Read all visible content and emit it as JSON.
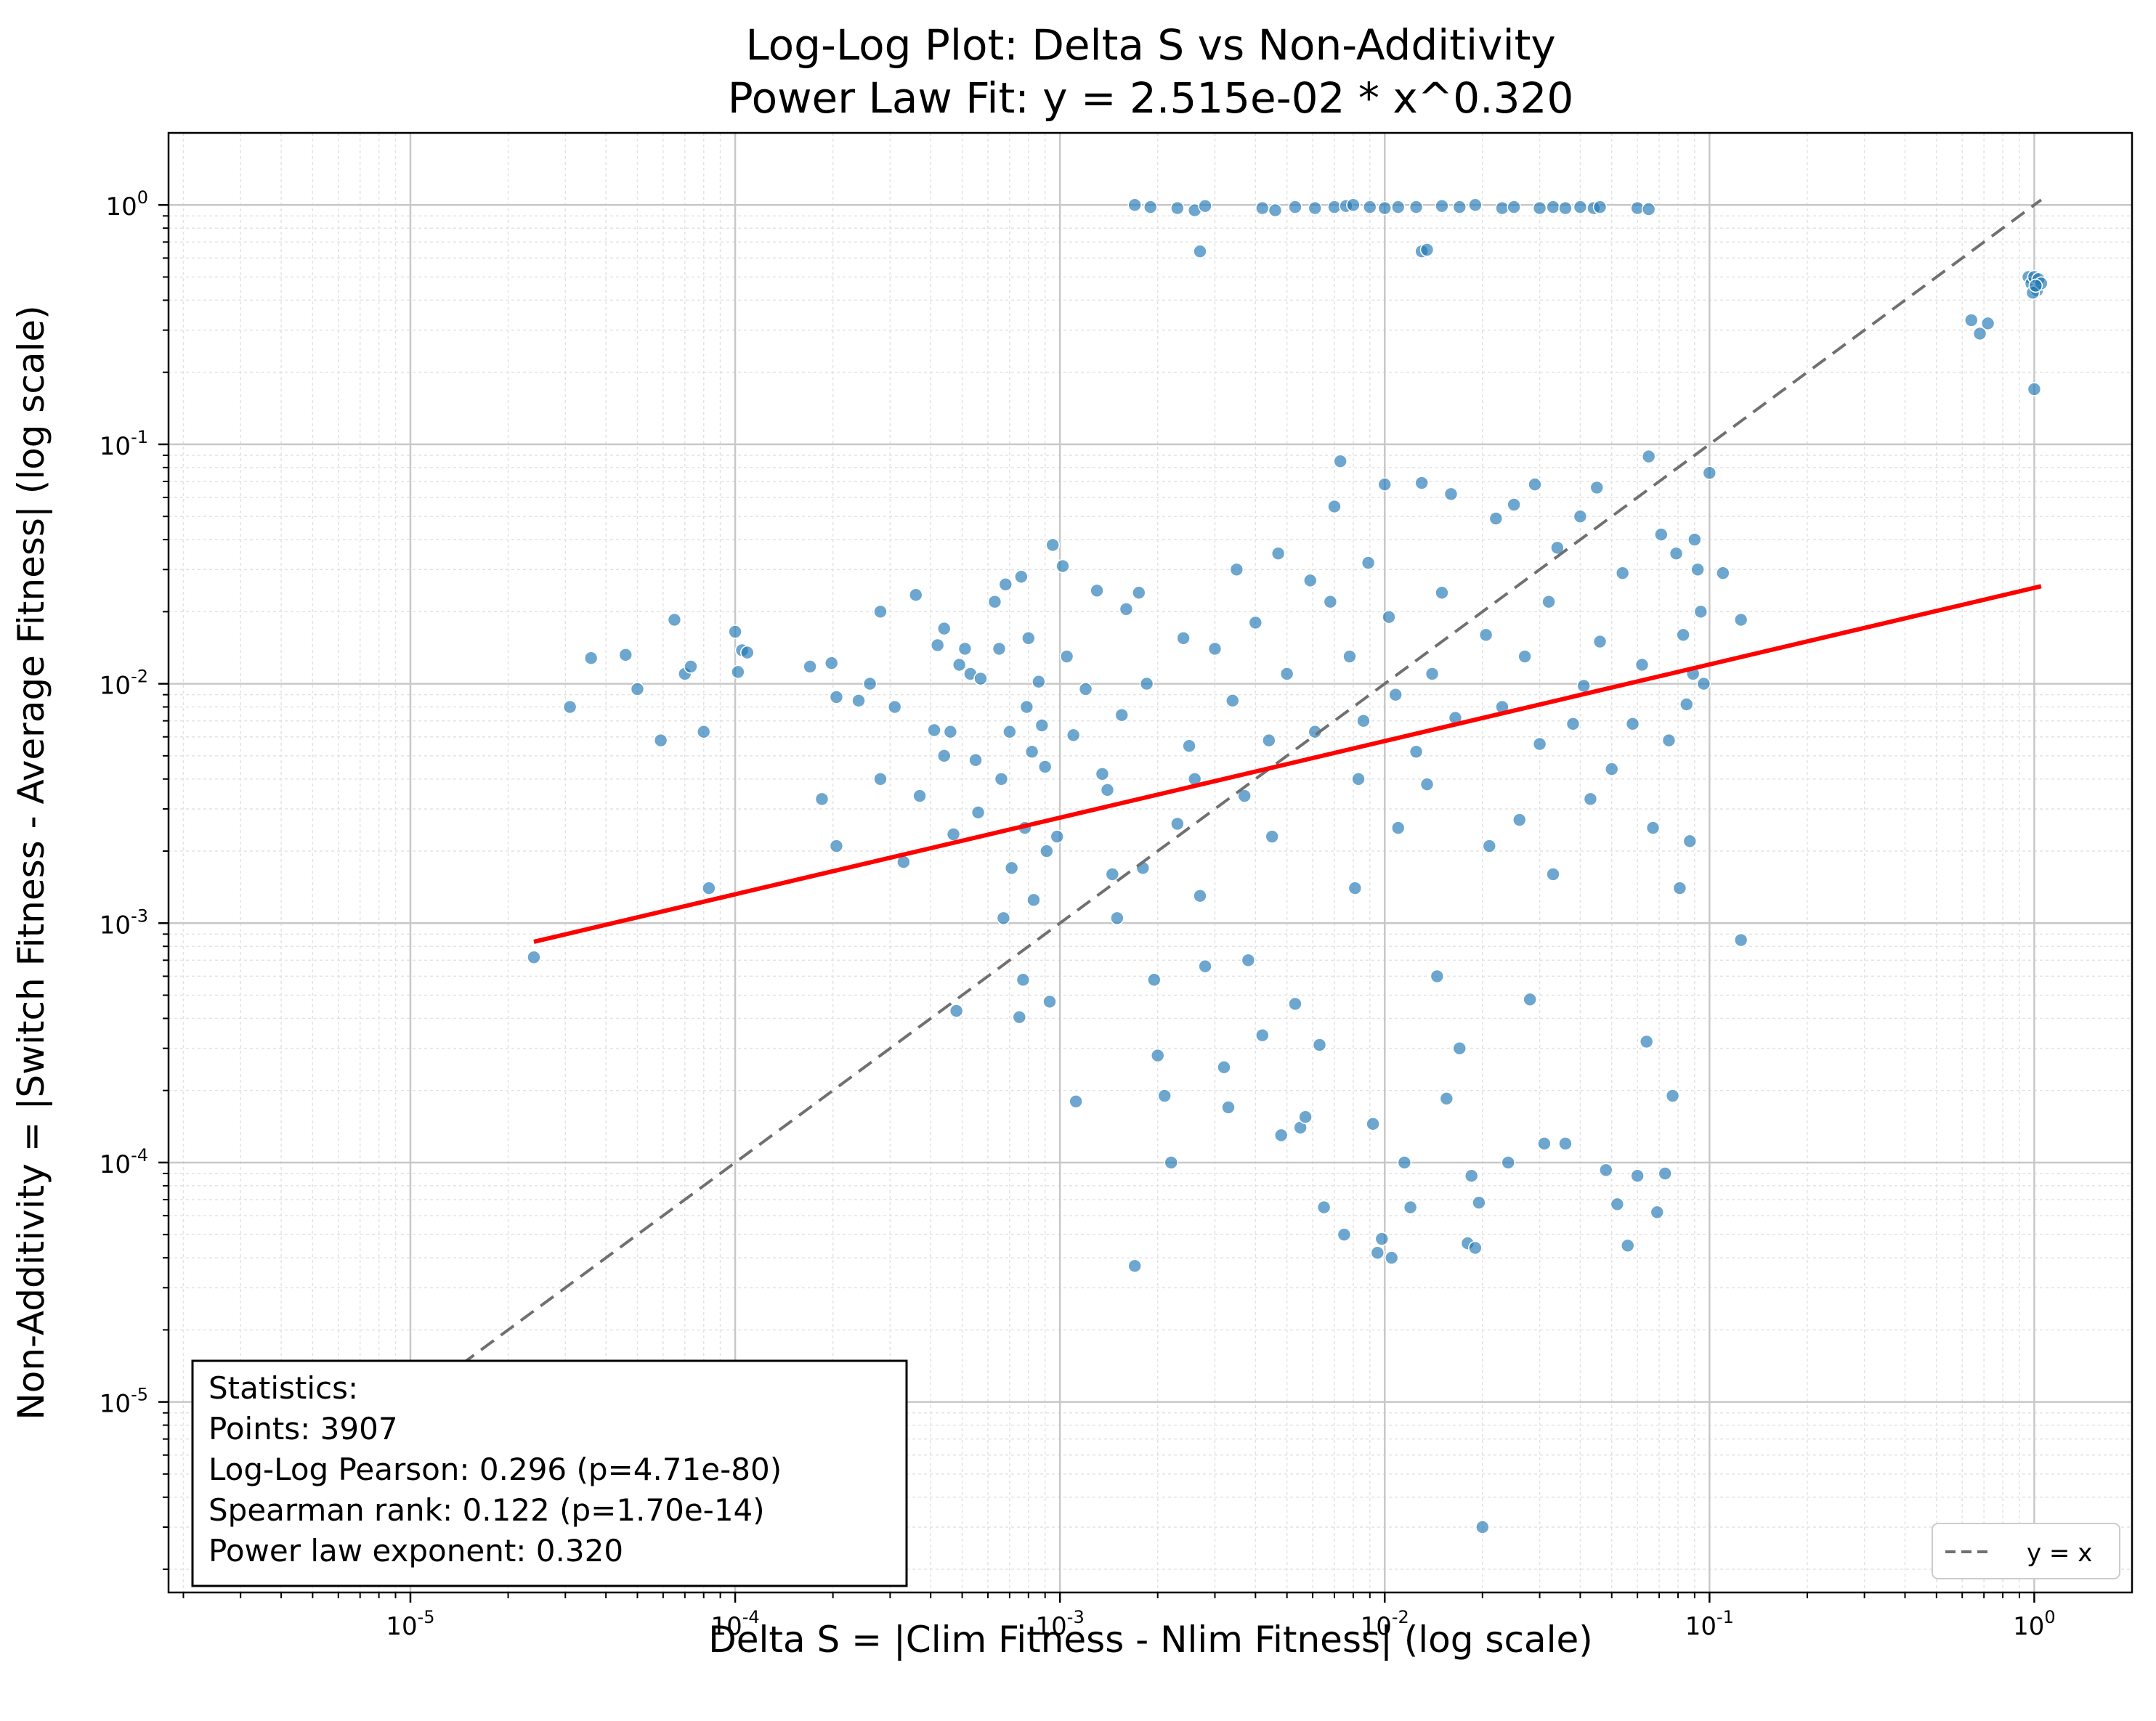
{
  "chart_data": {
    "type": "scatter",
    "title_line1": "Log-Log Plot: Delta S vs Non-Additivity",
    "title_line2": "Power Law Fit: y = 2.515e-02 * x^0.320",
    "xlabel": "Delta S = |Clim Fitness - Nlim Fitness| (log scale)",
    "ylabel": "Non-Additivity = |Switch Fitness - Average Fitness| (log scale)",
    "xscale": "log",
    "yscale": "log",
    "xlim": [
      1.8e-06,
      2.0
    ],
    "ylim": [
      1.6e-06,
      2.0
    ],
    "x_major_ticks": [
      {
        "exp": "-5",
        "value": 1e-05
      },
      {
        "exp": "-4",
        "value": 0.0001
      },
      {
        "exp": "-3",
        "value": 0.001
      },
      {
        "exp": "-2",
        "value": 0.01
      },
      {
        "exp": "-1",
        "value": 0.1
      },
      {
        "exp": "0",
        "value": 1
      }
    ],
    "y_major_ticks": [
      {
        "exp": "-5",
        "value": 1e-05
      },
      {
        "exp": "-4",
        "value": 0.0001
      },
      {
        "exp": "-3",
        "value": 0.001
      },
      {
        "exp": "-2",
        "value": 0.01
      },
      {
        "exp": "-1",
        "value": 0.1
      },
      {
        "exp": "0",
        "value": 1
      }
    ],
    "tick_base": "10",
    "grid": true,
    "point_color": "#1f77b4",
    "fit_color": "#ff0000",
    "identity_color": "#707070",
    "fit": {
      "a": 0.02515,
      "b": 0.32,
      "x_range": [
        2.4e-05,
        1.05
      ]
    },
    "identity_range": [
      3.5e-06,
      1.05
    ],
    "legend": {
      "placement": "bottom-right",
      "entries": [
        "y = x"
      ]
    },
    "stats": {
      "header": "Statistics:",
      "lines": [
        "Points: 3907",
        "Log-Log Pearson: 0.296 (p=4.71e-80)",
        "Spearman rank: 0.122 (p=1.70e-14)",
        "Power law exponent: 0.320"
      ]
    },
    "series": [
      {
        "points": [
          [
            2.4e-05,
            0.00072
          ],
          [
            3.1e-05,
            0.008
          ],
          [
            3.6e-05,
            0.0128
          ],
          [
            4.6e-05,
            0.0132
          ],
          [
            5e-05,
            0.0095
          ],
          [
            5.9e-05,
            0.0058
          ],
          [
            6.5e-05,
            0.0185
          ],
          [
            7e-05,
            0.011
          ],
          [
            7.3e-05,
            0.0118
          ],
          [
            8e-05,
            0.0063
          ],
          [
            8.3e-05,
            0.0014
          ],
          [
            0.0001,
            0.0165
          ],
          [
            0.000102,
            0.0112
          ],
          [
            0.000105,
            0.0138
          ],
          [
            0.000109,
            0.0135
          ],
          [
            0.00017,
            0.0118
          ],
          [
            0.000185,
            0.0033
          ],
          [
            0.000198,
            0.0122
          ],
          [
            0.000205,
            0.0021
          ],
          [
            0.000205,
            0.0088
          ],
          [
            0.00024,
            0.0085
          ],
          [
            0.00026,
            0.01
          ],
          [
            0.00028,
            0.02
          ],
          [
            0.00028,
            0.004
          ],
          [
            0.00031,
            0.008
          ],
          [
            0.00033,
            0.0018
          ],
          [
            0.00036,
            0.0235
          ],
          [
            0.00037,
            0.0034
          ],
          [
            0.00041,
            0.0064
          ],
          [
            0.00042,
            0.0145
          ],
          [
            0.00044,
            0.017
          ],
          [
            0.00044,
            0.005
          ],
          [
            0.00046,
            0.0063
          ],
          [
            0.00047,
            0.00235
          ],
          [
            0.00048,
            0.00043
          ],
          [
            0.00049,
            0.012
          ],
          [
            0.00051,
            0.014
          ],
          [
            0.00053,
            0.011
          ],
          [
            0.00055,
            0.0048
          ],
          [
            0.00056,
            0.0029
          ],
          [
            0.00057,
            0.0105
          ],
          [
            0.00063,
            0.022
          ],
          [
            0.00065,
            0.014
          ],
          [
            0.00066,
            0.004
          ],
          [
            0.00067,
            0.00105
          ],
          [
            0.00068,
            0.026
          ],
          [
            0.0007,
            0.0063
          ],
          [
            0.00071,
            0.0017
          ],
          [
            0.00075,
            0.000405
          ],
          [
            0.00076,
            0.028
          ],
          [
            0.00077,
            0.00058
          ],
          [
            0.00078,
            0.0025
          ],
          [
            0.00079,
            0.008
          ],
          [
            0.0008,
            0.0155
          ],
          [
            0.00082,
            0.0052
          ],
          [
            0.00083,
            0.00125
          ],
          [
            0.00086,
            0.0102
          ],
          [
            0.00088,
            0.0067
          ],
          [
            0.0009,
            0.0045
          ],
          [
            0.00091,
            0.002
          ],
          [
            0.00093,
            0.00047
          ],
          [
            0.00095,
            0.038
          ],
          [
            0.00098,
            0.0023
          ],
          [
            0.00102,
            0.031
          ],
          [
            0.00105,
            0.013
          ],
          [
            0.0011,
            0.0061
          ],
          [
            0.00112,
            0.00018
          ],
          [
            0.0012,
            0.0095
          ],
          [
            0.0013,
            0.0245
          ],
          [
            0.00135,
            0.0042
          ],
          [
            0.0014,
            0.0036
          ],
          [
            0.00145,
            0.0016
          ],
          [
            0.0015,
            0.00105
          ],
          [
            0.00155,
            0.0074
          ],
          [
            0.0016,
            0.0205
          ],
          [
            0.0017,
            3.7e-05
          ],
          [
            0.00175,
            0.024
          ],
          [
            0.0018,
            0.0017
          ],
          [
            0.00185,
            0.01
          ],
          [
            0.00195,
            0.00058
          ],
          [
            0.002,
            0.00028
          ],
          [
            0.0021,
            0.00019
          ],
          [
            0.0022,
            0.0001
          ],
          [
            0.0023,
            0.0026
          ],
          [
            0.0024,
            0.0155
          ],
          [
            0.0025,
            0.0055
          ],
          [
            0.0026,
            0.004
          ],
          [
            0.0027,
            0.0013
          ],
          [
            0.0028,
            0.00066
          ],
          [
            0.003,
            0.014
          ],
          [
            0.0032,
            0.00025
          ],
          [
            0.0033,
            0.00017
          ],
          [
            0.0034,
            0.0085
          ],
          [
            0.0035,
            0.03
          ],
          [
            0.0037,
            0.0034
          ],
          [
            0.0038,
            0.0007
          ],
          [
            0.004,
            0.018
          ],
          [
            0.0042,
            0.00034
          ],
          [
            0.0044,
            0.0058
          ],
          [
            0.0045,
            0.0023
          ],
          [
            0.0047,
            0.035
          ],
          [
            0.0048,
            0.00013
          ],
          [
            0.005,
            0.011
          ],
          [
            0.0053,
            0.00046
          ],
          [
            0.0055,
            0.00014
          ],
          [
            0.0057,
            0.000155
          ],
          [
            0.0059,
            0.027
          ],
          [
            0.0061,
            0.0063
          ],
          [
            0.0063,
            0.00031
          ],
          [
            0.0065,
            6.5e-05
          ],
          [
            0.0068,
            0.022
          ],
          [
            0.007,
            0.055
          ],
          [
            0.0073,
            0.085
          ],
          [
            0.0075,
            5e-05
          ],
          [
            0.0078,
            0.013
          ],
          [
            0.0081,
            0.0014
          ],
          [
            0.0083,
            0.004
          ],
          [
            0.0086,
            0.007
          ],
          [
            0.0089,
            0.032
          ],
          [
            0.0092,
            0.000145
          ],
          [
            0.0095,
            4.2e-05
          ],
          [
            0.0098,
            4.8e-05
          ],
          [
            0.01,
            0.068
          ],
          [
            0.0103,
            0.019
          ],
          [
            0.0105,
            4e-05
          ],
          [
            0.0108,
            0.009
          ],
          [
            0.011,
            0.0025
          ],
          [
            0.0115,
            0.0001
          ],
          [
            0.012,
            6.5e-05
          ],
          [
            0.0125,
            0.0052
          ],
          [
            0.013,
            0.069
          ],
          [
            0.0135,
            0.0038
          ],
          [
            0.014,
            0.011
          ],
          [
            0.0145,
            0.0006
          ],
          [
            0.015,
            0.024
          ],
          [
            0.0155,
            0.000185
          ],
          [
            0.016,
            0.062
          ],
          [
            0.0165,
            0.0072
          ],
          [
            0.017,
            0.0003
          ],
          [
            0.018,
            4.6e-05
          ],
          [
            0.0185,
            8.8e-05
          ],
          [
            0.019,
            4.4e-05
          ],
          [
            0.0195,
            6.8e-05
          ],
          [
            0.02,
            3e-06
          ],
          [
            0.0205,
            0.016
          ],
          [
            0.021,
            0.0021
          ],
          [
            0.022,
            0.049
          ],
          [
            0.023,
            0.008
          ],
          [
            0.024,
            0.0001
          ],
          [
            0.025,
            0.056
          ],
          [
            0.026,
            0.0027
          ],
          [
            0.027,
            0.013
          ],
          [
            0.028,
            0.00048
          ],
          [
            0.029,
            0.068
          ],
          [
            0.03,
            0.0056
          ],
          [
            0.031,
            0.00012
          ],
          [
            0.032,
            0.022
          ],
          [
            0.033,
            0.0016
          ],
          [
            0.034,
            0.037
          ],
          [
            0.036,
            0.00012
          ],
          [
            0.038,
            0.0068
          ],
          [
            0.04,
            0.05
          ],
          [
            0.041,
            0.0098
          ],
          [
            0.043,
            0.0033
          ],
          [
            0.045,
            0.066
          ],
          [
            0.046,
            0.015
          ],
          [
            0.048,
            9.3e-05
          ],
          [
            0.05,
            0.0044
          ],
          [
            0.052,
            6.7e-05
          ],
          [
            0.054,
            0.029
          ],
          [
            0.056,
            4.5e-05
          ],
          [
            0.058,
            0.0068
          ],
          [
            0.06,
            8.8e-05
          ],
          [
            0.062,
            0.012
          ],
          [
            0.064,
            0.00032
          ],
          [
            0.065,
            0.089
          ],
          [
            0.067,
            0.0025
          ],
          [
            0.069,
            6.2e-05
          ],
          [
            0.071,
            0.042
          ],
          [
            0.073,
            9e-05
          ],
          [
            0.075,
            0.0058
          ],
          [
            0.077,
            0.00019
          ],
          [
            0.079,
            0.035
          ],
          [
            0.081,
            0.0014
          ],
          [
            0.083,
            0.016
          ],
          [
            0.085,
            0.0082
          ],
          [
            0.087,
            0.0022
          ],
          [
            0.089,
            0.011
          ],
          [
            0.09,
            0.04
          ],
          [
            0.092,
            0.03
          ],
          [
            0.094,
            0.02
          ],
          [
            0.096,
            0.01
          ],
          [
            0.1,
            0.076
          ],
          [
            0.11,
            0.029
          ],
          [
            0.125,
            0.0185
          ],
          [
            0.125,
            0.00085
          ],
          [
            0.0017,
            1.0
          ],
          [
            0.0019,
            0.98
          ],
          [
            0.0023,
            0.97
          ],
          [
            0.0026,
            0.95
          ],
          [
            0.0027,
            0.64
          ],
          [
            0.0028,
            0.99
          ],
          [
            0.0042,
            0.97
          ],
          [
            0.0046,
            0.95
          ],
          [
            0.0053,
            0.98
          ],
          [
            0.0061,
            0.97
          ],
          [
            0.007,
            0.98
          ],
          [
            0.0076,
            0.99
          ],
          [
            0.008,
            1.0
          ],
          [
            0.009,
            0.98
          ],
          [
            0.01,
            0.97
          ],
          [
            0.011,
            0.98
          ],
          [
            0.0125,
            0.98
          ],
          [
            0.013,
            0.64
          ],
          [
            0.0135,
            0.65
          ],
          [
            0.015,
            0.99
          ],
          [
            0.017,
            0.98
          ],
          [
            0.019,
            1.0
          ],
          [
            0.023,
            0.97
          ],
          [
            0.025,
            0.98
          ],
          [
            0.03,
            0.97
          ],
          [
            0.033,
            0.98
          ],
          [
            0.036,
            0.97
          ],
          [
            0.04,
            0.98
          ],
          [
            0.044,
            0.97
          ],
          [
            0.046,
            0.98
          ],
          [
            0.06,
            0.97
          ],
          [
            0.065,
            0.96
          ],
          [
            0.64,
            0.33
          ],
          [
            0.68,
            0.29
          ],
          [
            0.72,
            0.32
          ],
          [
            0.96,
            0.5
          ],
          [
            0.98,
            0.47
          ],
          [
            1.0,
            0.5
          ],
          [
            1.0,
            0.17
          ],
          [
            1.02,
            0.44
          ],
          [
            1.03,
            0.49
          ],
          [
            1.05,
            0.47
          ],
          [
            0.99,
            0.43
          ],
          [
            1.01,
            0.46
          ]
        ]
      }
    ]
  }
}
